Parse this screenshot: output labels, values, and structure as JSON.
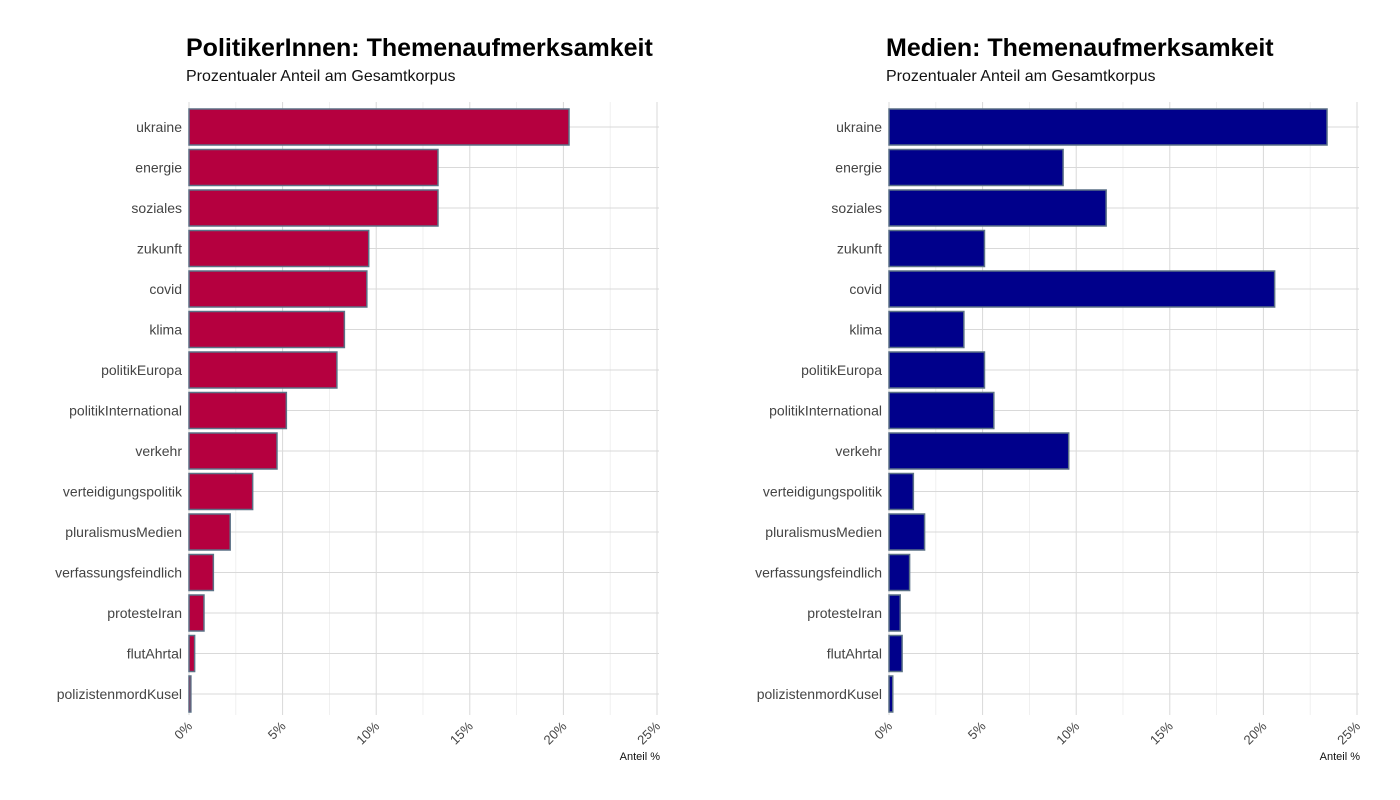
{
  "chart_data": [
    {
      "type": "bar",
      "orientation": "horizontal",
      "title": "PolitikerInnen: Themenaufmerksamkeit",
      "subtitle": "Prozentualer Anteil am Gesamtkorpus",
      "xlabel": "Anteil %",
      "xlim": [
        0,
        25
      ],
      "x_ticks": [
        "0%",
        "5%",
        "10%",
        "15%",
        "20%",
        "25%"
      ],
      "grid": true,
      "bar_color": "#b5003f",
      "categories": [
        "ukraine",
        "energie",
        "soziales",
        "zukunft",
        "covid",
        "klima",
        "politikEuropa",
        "politikInternational",
        "verkehr",
        "verteidigungspolitik",
        "pluralismusMedien",
        "verfassungsfeindlich",
        "protesteIran",
        "flutAhrtal",
        "polizistenmordKusel"
      ],
      "values": [
        20.3,
        13.3,
        13.3,
        9.6,
        9.5,
        8.3,
        7.9,
        5.2,
        4.7,
        3.4,
        2.2,
        1.3,
        0.8,
        0.3,
        0.1
      ]
    },
    {
      "type": "bar",
      "orientation": "horizontal",
      "title": "Medien: Themenaufmerksamkeit",
      "subtitle": "Prozentualer Anteil am Gesamtkorpus",
      "xlabel": "Anteil %",
      "xlim": [
        0,
        25
      ],
      "x_ticks": [
        "0%",
        "5%",
        "10%",
        "15%",
        "20%",
        "25%"
      ],
      "grid": true,
      "bar_color": "#00008b",
      "categories": [
        "ukraine",
        "energie",
        "soziales",
        "zukunft",
        "covid",
        "klima",
        "politikEuropa",
        "politikInternational",
        "verkehr",
        "verteidigungspolitik",
        "pluralismusMedien",
        "verfassungsfeindlich",
        "protesteIran",
        "flutAhrtal",
        "polizistenmordKusel"
      ],
      "values": [
        23.4,
        9.3,
        11.6,
        5.1,
        20.6,
        4.0,
        5.1,
        5.6,
        9.6,
        1.3,
        1.9,
        1.1,
        0.6,
        0.7,
        0.2
      ]
    }
  ]
}
